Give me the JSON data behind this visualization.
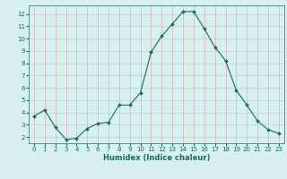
{
  "x": [
    0,
    1,
    2,
    3,
    4,
    5,
    6,
    7,
    8,
    9,
    10,
    11,
    12,
    13,
    14,
    15,
    16,
    17,
    18,
    19,
    20,
    21,
    22,
    23
  ],
  "y": [
    3.7,
    4.2,
    2.8,
    1.8,
    1.9,
    2.7,
    3.1,
    3.2,
    4.6,
    4.6,
    5.6,
    8.9,
    10.2,
    11.2,
    12.2,
    12.2,
    10.8,
    9.3,
    8.2,
    5.8,
    4.6,
    3.3,
    2.6,
    2.3
  ],
  "line_color": "#1a6b5a",
  "marker": "D",
  "marker_size": 2.0,
  "bg_color": "#d8f0f0",
  "grid_color_major": "#b8d4d4",
  "xlabel": "Humidex (Indice chaleur)",
  "xlim": [
    -0.5,
    23.5
  ],
  "ylim": [
    1.5,
    12.7
  ],
  "yticks": [
    2,
    3,
    4,
    5,
    6,
    7,
    8,
    9,
    10,
    11,
    12
  ],
  "xticks": [
    0,
    1,
    2,
    3,
    4,
    5,
    6,
    7,
    8,
    9,
    10,
    11,
    12,
    13,
    14,
    15,
    16,
    17,
    18,
    19,
    20,
    21,
    22,
    23
  ]
}
